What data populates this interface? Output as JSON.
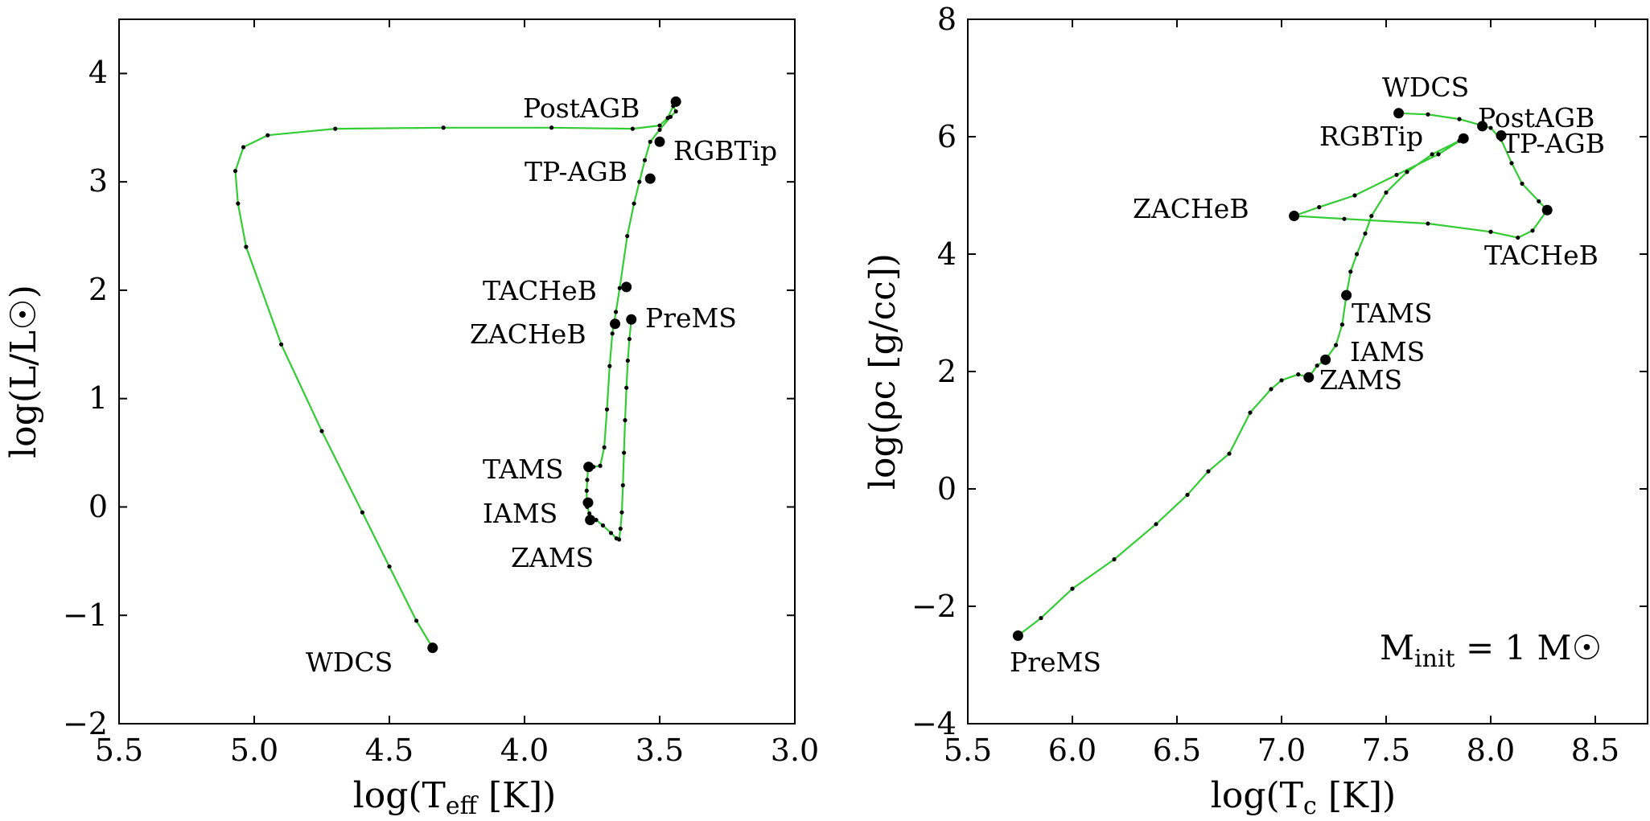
{
  "styles": {
    "track_color": "#33cc33",
    "marker_color": "#000000",
    "frame_color": "#000000"
  },
  "chart_data": [
    {
      "type": "line",
      "panel": "left",
      "title": "",
      "xlabel": "log(Teff [K])",
      "xlabel_main": "log(T",
      "xlabel_sub": "eff",
      "xlabel_tail": " [K])",
      "ylabel": "log(L/L☉)",
      "xlim": [
        5.5,
        3.0
      ],
      "ylim": [
        -2.0,
        4.5
      ],
      "xticks": [
        5.5,
        5.0,
        4.5,
        4.0,
        3.5,
        3.0
      ],
      "xtick_labels": [
        "5.5",
        "5.0",
        "4.5",
        "4.0",
        "3.5",
        "3.0"
      ],
      "yticks": [
        -2,
        -1,
        0,
        1,
        2,
        3,
        4
      ],
      "ytick_labels": [
        "−2",
        "−1",
        "0",
        "1",
        "2",
        "3",
        "4"
      ],
      "grid": false,
      "track": [
        [
          3.605,
          1.73
        ],
        [
          3.612,
          1.55
        ],
        [
          3.618,
          1.35
        ],
        [
          3.623,
          1.1
        ],
        [
          3.628,
          0.8
        ],
        [
          3.632,
          0.5
        ],
        [
          3.636,
          0.2
        ],
        [
          3.64,
          -0.05
        ],
        [
          3.645,
          -0.2
        ],
        [
          3.65,
          -0.3
        ],
        [
          3.66,
          -0.29
        ],
        [
          3.68,
          -0.24
        ],
        [
          3.71,
          -0.17
        ],
        [
          3.735,
          -0.12
        ],
        [
          3.75,
          -0.1
        ],
        [
          3.76,
          -0.06
        ],
        [
          3.768,
          0.0
        ],
        [
          3.77,
          0.05
        ],
        [
          3.77,
          0.15
        ],
        [
          3.768,
          0.25
        ],
        [
          3.765,
          0.36
        ],
        [
          3.745,
          0.37
        ],
        [
          3.72,
          0.38
        ],
        [
          3.705,
          0.55
        ],
        [
          3.695,
          0.9
        ],
        [
          3.685,
          1.3
        ],
        [
          3.675,
          1.6
        ],
        [
          3.67,
          1.69
        ],
        [
          3.662,
          1.8
        ],
        [
          3.648,
          2.02
        ],
        [
          3.62,
          2.5
        ],
        [
          3.595,
          2.8
        ],
        [
          3.575,
          3.0
        ],
        [
          3.555,
          3.2
        ],
        [
          3.535,
          3.37
        ],
        [
          3.5,
          3.48
        ],
        [
          3.46,
          3.6
        ],
        [
          3.44,
          3.65
        ],
        [
          3.45,
          3.7
        ],
        [
          3.47,
          3.59
        ],
        [
          3.5,
          3.52
        ],
        [
          3.6,
          3.49
        ],
        [
          3.9,
          3.5
        ],
        [
          4.3,
          3.5
        ],
        [
          4.7,
          3.49
        ],
        [
          4.95,
          3.43
        ],
        [
          5.04,
          3.32
        ],
        [
          5.07,
          3.1
        ],
        [
          5.06,
          2.8
        ],
        [
          5.03,
          2.4
        ],
        [
          4.9,
          1.5
        ],
        [
          4.75,
          0.7
        ],
        [
          4.6,
          -0.05
        ],
        [
          4.5,
          -0.55
        ],
        [
          4.4,
          -1.05
        ],
        [
          4.34,
          -1.3
        ]
      ],
      "phase_points": [
        {
          "name": "PreMS",
          "x": 3.605,
          "y": 1.73
        },
        {
          "name": "ZAMS",
          "x": 3.757,
          "y": -0.12
        },
        {
          "name": "IAMS",
          "x": 3.765,
          "y": 0.04
        },
        {
          "name": "TAMS",
          "x": 3.763,
          "y": 0.37
        },
        {
          "name": "ZACHeB",
          "x": 3.665,
          "y": 1.69
        },
        {
          "name": "TACHeB",
          "x": 3.623,
          "y": 2.03
        },
        {
          "name": "TP-AGB",
          "x": 3.535,
          "y": 3.03
        },
        {
          "name": "RGBTip",
          "x": 3.5,
          "y": 3.37
        },
        {
          "name": "PostAGB",
          "x": 3.44,
          "y": 3.74
        },
        {
          "name": "WDCS",
          "x": 4.34,
          "y": -1.3
        }
      ],
      "phase_labels": [
        "PostAGB",
        "RGBTip",
        "TP-AGB",
        "TACHeB",
        "ZACHeB",
        "PreMS",
        "TAMS",
        "IAMS",
        "ZAMS",
        "WDCS"
      ]
    },
    {
      "type": "line",
      "panel": "right",
      "title": "",
      "xlabel": "log(Tc [K])",
      "xlabel_main": "log(T",
      "xlabel_sub": "c",
      "xlabel_tail": " [K])",
      "ylabel": "log(ρc [g/cc])",
      "xlim": [
        5.5,
        8.75
      ],
      "ylim": [
        -4,
        8
      ],
      "xticks": [
        5.5,
        6.0,
        6.5,
        7.0,
        7.5,
        8.0,
        8.5
      ],
      "xtick_labels": [
        "5.5",
        "6.0",
        "6.5",
        "7.0",
        "7.5",
        "8.0",
        "8.5"
      ],
      "yticks": [
        -4,
        -2,
        0,
        2,
        4,
        6,
        8
      ],
      "ytick_labels": [
        "−4",
        "−2",
        "0",
        "2",
        "4",
        "6",
        "8"
      ],
      "grid": false,
      "annotation_main": "M",
      "annotation_sub": "init",
      "annotation_tail": " = 1 M☉",
      "track": [
        [
          5.74,
          -2.5
        ],
        [
          5.85,
          -2.2
        ],
        [
          6.0,
          -1.7
        ],
        [
          6.2,
          -1.2
        ],
        [
          6.4,
          -0.6
        ],
        [
          6.55,
          -0.1
        ],
        [
          6.65,
          0.3
        ],
        [
          6.75,
          0.6
        ],
        [
          6.85,
          1.3
        ],
        [
          6.95,
          1.7
        ],
        [
          7.0,
          1.85
        ],
        [
          7.08,
          1.95
        ],
        [
          7.13,
          1.9
        ],
        [
          7.17,
          2.1
        ],
        [
          7.21,
          2.2
        ],
        [
          7.26,
          2.45
        ],
        [
          7.29,
          2.8
        ],
        [
          7.31,
          3.3
        ],
        [
          7.33,
          3.7
        ],
        [
          7.36,
          4.0
        ],
        [
          7.4,
          4.35
        ],
        [
          7.43,
          4.65
        ],
        [
          7.5,
          5.05
        ],
        [
          7.6,
          5.4
        ],
        [
          7.72,
          5.7
        ],
        [
          7.85,
          5.93
        ],
        [
          7.87,
          5.97
        ],
        [
          7.75,
          5.7
        ],
        [
          7.55,
          5.35
        ],
        [
          7.35,
          5.0
        ],
        [
          7.18,
          4.8
        ],
        [
          7.06,
          4.65
        ],
        [
          7.3,
          4.6
        ],
        [
          7.7,
          4.52
        ],
        [
          8.0,
          4.38
        ],
        [
          8.13,
          4.28
        ],
        [
          8.2,
          4.4
        ],
        [
          8.27,
          4.75
        ],
        [
          8.23,
          4.9
        ],
        [
          8.15,
          5.2
        ],
        [
          8.1,
          5.55
        ],
        [
          8.05,
          5.95
        ],
        [
          8.0,
          6.15
        ],
        [
          7.95,
          6.2
        ],
        [
          7.85,
          6.3
        ],
        [
          7.7,
          6.38
        ],
        [
          7.56,
          6.4
        ]
      ],
      "phase_points": [
        {
          "name": "PreMS",
          "x": 5.74,
          "y": -2.5
        },
        {
          "name": "ZAMS",
          "x": 7.13,
          "y": 1.9
        },
        {
          "name": "IAMS",
          "x": 7.21,
          "y": 2.2
        },
        {
          "name": "TAMS",
          "x": 7.31,
          "y": 3.3
        },
        {
          "name": "ZACHeB",
          "x": 7.06,
          "y": 4.65
        },
        {
          "name": "TACHeB",
          "x": 8.27,
          "y": 4.75
        },
        {
          "name": "RGBTip",
          "x": 7.87,
          "y": 5.97
        },
        {
          "name": "TP-AGB",
          "x": 8.05,
          "y": 6.02
        },
        {
          "name": "PostAGB",
          "x": 7.96,
          "y": 6.18
        },
        {
          "name": "WDCS",
          "x": 7.56,
          "y": 6.4
        }
      ],
      "phase_labels": [
        "WDCS",
        "PostAGB",
        "RGBTip",
        "TP-AGB",
        "ZACHeB",
        "TACHeB",
        "TAMS",
        "IAMS",
        "ZAMS",
        "PreMS"
      ]
    }
  ]
}
